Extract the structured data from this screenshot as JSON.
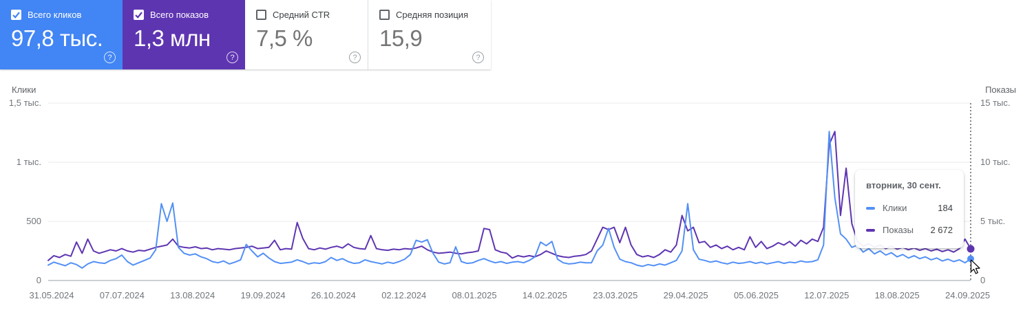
{
  "cards": [
    {
      "label": "Всего кликов",
      "value": "97,8 тыс.",
      "checked": true,
      "color": "#4285f4"
    },
    {
      "label": "Всего показов",
      "value": "1,3 млн",
      "checked": true,
      "color": "#5e35b1"
    },
    {
      "label": "Средний CTR",
      "value": "7,5 %",
      "checked": false,
      "color": ""
    },
    {
      "label": "Средняя позиция",
      "value": "15,9",
      "checked": false,
      "color": ""
    }
  ],
  "help_icon_glyph": "?",
  "chart": {
    "left_axis_title": "Клики",
    "right_axis_title": "Показы",
    "left_ticks": [
      {
        "label": "1,5 тыс.",
        "value": 1500
      },
      {
        "label": "1 тыс.",
        "value": 1000
      },
      {
        "label": "500",
        "value": 500
      },
      {
        "label": "0",
        "value": 0
      }
    ],
    "right_ticks": [
      {
        "label": "15 тыс.",
        "value": 15000
      },
      {
        "label": "10 тыс.",
        "value": 10000
      },
      {
        "label": "5 тыс.",
        "value": 5000
      },
      {
        "label": "0",
        "value": 0
      }
    ]
  },
  "tooltip": {
    "title": "вторник, 30 сент.",
    "rows": [
      {
        "label": "Клики",
        "value": "184",
        "color": "#5290f5"
      },
      {
        "label": "Показы",
        "value": "2 672",
        "color": "#5e35b1"
      }
    ]
  },
  "chart_data": {
    "type": "line",
    "title": "",
    "x_axis": {
      "tick_labels": [
        "31.05.2024",
        "07.07.2024",
        "13.08.2024",
        "19.09.2024",
        "26.10.2024",
        "02.12.2024",
        "08.01.2025",
        "14.02.2025",
        "23.03.2025",
        "29.04.2025",
        "05.06.2025",
        "12.07.2025",
        "18.08.2025",
        "24.09.2025"
      ]
    },
    "left_ylim": [
      0,
      1500
    ],
    "right_ylim": [
      0,
      15000
    ],
    "grid": true,
    "selected_point": {
      "date": "вторник, 30 сент.",
      "clicks": 184,
      "impressions": 2672
    },
    "series": [
      {
        "name": "Показы",
        "axis": "right",
        "color": "#5e35b1",
        "values": [
          1700,
          2100,
          1950,
          2200,
          2050,
          3250,
          2300,
          3500,
          2500,
          2300,
          2450,
          2600,
          2500,
          2700,
          2500,
          2400,
          2550,
          2500,
          2650,
          2800,
          2900,
          3000,
          3500,
          2900,
          2800,
          2750,
          2850,
          2700,
          2750,
          2600,
          2700,
          2650,
          2600,
          2700,
          2750,
          2800,
          2900,
          2700,
          2750,
          2800,
          3400,
          2600,
          2700,
          2650,
          4900,
          3550,
          2700,
          2600,
          2750,
          2650,
          2800,
          2900,
          2750,
          3100,
          2800,
          2700,
          2650,
          3800,
          2700,
          2600,
          2550,
          2650,
          2600,
          2700,
          2650,
          2750,
          2900,
          2600,
          2400,
          2300,
          2350,
          2400,
          2300,
          2250,
          2350,
          2400,
          2500,
          4400,
          4300,
          2600,
          2400,
          2300,
          1900,
          2100,
          2000,
          2100,
          2000,
          2200,
          2500,
          2300,
          2100,
          2000,
          1950,
          2050,
          2100,
          2200,
          2500,
          3500,
          4500,
          4300,
          4500,
          3200,
          4500,
          3000,
          2200,
          2000,
          2100,
          1950,
          2200,
          2600,
          2400,
          3000,
          5500,
          4200,
          4500,
          3200,
          3300,
          2800,
          3000,
          2700,
          2900,
          2600,
          2800,
          2600,
          3700,
          2800,
          3300,
          2700,
          2900,
          3200,
          3000,
          3300,
          2900,
          3400,
          3100,
          3500,
          3300,
          4500,
          11500,
          12600,
          5500,
          9500,
          4800,
          3300,
          2900,
          3100,
          2800,
          3000,
          2700,
          2900,
          2650,
          2800,
          2600,
          2750,
          2550,
          2700,
          2500,
          2650,
          2450,
          2600,
          2400,
          2700,
          3500,
          2672
        ]
      },
      {
        "name": "Клики",
        "axis": "left",
        "color": "#5290f5",
        "values": [
          130,
          155,
          140,
          125,
          150,
          135,
          105,
          140,
          160,
          150,
          145,
          170,
          185,
          215,
          160,
          130,
          150,
          170,
          190,
          260,
          650,
          500,
          655,
          280,
          230,
          215,
          225,
          200,
          185,
          160,
          150,
          165,
          140,
          155,
          175,
          305,
          250,
          200,
          230,
          190,
          160,
          145,
          150,
          155,
          175,
          160,
          140,
          150,
          145,
          160,
          195,
          170,
          185,
          160,
          145,
          150,
          175,
          160,
          150,
          140,
          155,
          145,
          160,
          180,
          220,
          340,
          325,
          345,
          230,
          155,
          140,
          150,
          285,
          160,
          145,
          150,
          170,
          185,
          165,
          150,
          160,
          145,
          155,
          160,
          150,
          170,
          200,
          325,
          295,
          330,
          180,
          150,
          140,
          145,
          155,
          150,
          150,
          250,
          300,
          440,
          280,
          180,
          160,
          150,
          130,
          120,
          135,
          125,
          140,
          130,
          150,
          170,
          250,
          650,
          260,
          180,
          170,
          155,
          165,
          150,
          140,
          155,
          145,
          150,
          160,
          145,
          155,
          140,
          150,
          160,
          145,
          155,
          150,
          165,
          155,
          160,
          175,
          300,
          1260,
          700,
          395,
          350,
          280,
          300,
          240,
          270,
          225,
          250,
          215,
          235,
          200,
          220,
          190,
          210,
          185,
          200,
          175,
          190,
          165,
          180,
          160,
          175,
          150,
          184
        ]
      }
    ]
  }
}
